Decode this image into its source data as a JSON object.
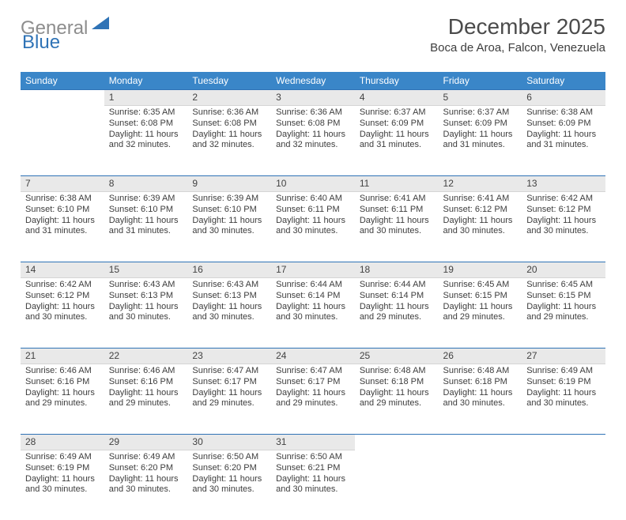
{
  "logo": {
    "part1": "General",
    "part2": "Blue"
  },
  "title": "December 2025",
  "location": "Boca de Aroa, Falcon, Venezuela",
  "styling": {
    "header_bg": "#3a86c8",
    "header_text": "#ffffff",
    "daynum_bg": "#e9e9e9",
    "daynum_border_top": "#2f73b6",
    "body_text": "#3d3d3d",
    "title_color": "#4b4b4b",
    "logo_gray": "#8d8d8d",
    "logo_blue": "#2f73b6",
    "page_bg": "#ffffff",
    "font_family": "Arial",
    "title_fontsize_pt": 21,
    "location_fontsize_pt": 11,
    "header_fontsize_pt": 9,
    "cell_fontsize_pt": 8
  },
  "day_headers": [
    "Sunday",
    "Monday",
    "Tuesday",
    "Wednesday",
    "Thursday",
    "Friday",
    "Saturday"
  ],
  "weeks": [
    [
      null,
      {
        "n": "1",
        "sunrise": "Sunrise: 6:35 AM",
        "sunset": "Sunset: 6:08 PM",
        "day1": "Daylight: 11 hours",
        "day2": "and 32 minutes."
      },
      {
        "n": "2",
        "sunrise": "Sunrise: 6:36 AM",
        "sunset": "Sunset: 6:08 PM",
        "day1": "Daylight: 11 hours",
        "day2": "and 32 minutes."
      },
      {
        "n": "3",
        "sunrise": "Sunrise: 6:36 AM",
        "sunset": "Sunset: 6:08 PM",
        "day1": "Daylight: 11 hours",
        "day2": "and 32 minutes."
      },
      {
        "n": "4",
        "sunrise": "Sunrise: 6:37 AM",
        "sunset": "Sunset: 6:09 PM",
        "day1": "Daylight: 11 hours",
        "day2": "and 31 minutes."
      },
      {
        "n": "5",
        "sunrise": "Sunrise: 6:37 AM",
        "sunset": "Sunset: 6:09 PM",
        "day1": "Daylight: 11 hours",
        "day2": "and 31 minutes."
      },
      {
        "n": "6",
        "sunrise": "Sunrise: 6:38 AM",
        "sunset": "Sunset: 6:09 PM",
        "day1": "Daylight: 11 hours",
        "day2": "and 31 minutes."
      }
    ],
    [
      {
        "n": "7",
        "sunrise": "Sunrise: 6:38 AM",
        "sunset": "Sunset: 6:10 PM",
        "day1": "Daylight: 11 hours",
        "day2": "and 31 minutes."
      },
      {
        "n": "8",
        "sunrise": "Sunrise: 6:39 AM",
        "sunset": "Sunset: 6:10 PM",
        "day1": "Daylight: 11 hours",
        "day2": "and 31 minutes."
      },
      {
        "n": "9",
        "sunrise": "Sunrise: 6:39 AM",
        "sunset": "Sunset: 6:10 PM",
        "day1": "Daylight: 11 hours",
        "day2": "and 30 minutes."
      },
      {
        "n": "10",
        "sunrise": "Sunrise: 6:40 AM",
        "sunset": "Sunset: 6:11 PM",
        "day1": "Daylight: 11 hours",
        "day2": "and 30 minutes."
      },
      {
        "n": "11",
        "sunrise": "Sunrise: 6:41 AM",
        "sunset": "Sunset: 6:11 PM",
        "day1": "Daylight: 11 hours",
        "day2": "and 30 minutes."
      },
      {
        "n": "12",
        "sunrise": "Sunrise: 6:41 AM",
        "sunset": "Sunset: 6:12 PM",
        "day1": "Daylight: 11 hours",
        "day2": "and 30 minutes."
      },
      {
        "n": "13",
        "sunrise": "Sunrise: 6:42 AM",
        "sunset": "Sunset: 6:12 PM",
        "day1": "Daylight: 11 hours",
        "day2": "and 30 minutes."
      }
    ],
    [
      {
        "n": "14",
        "sunrise": "Sunrise: 6:42 AM",
        "sunset": "Sunset: 6:12 PM",
        "day1": "Daylight: 11 hours",
        "day2": "and 30 minutes."
      },
      {
        "n": "15",
        "sunrise": "Sunrise: 6:43 AM",
        "sunset": "Sunset: 6:13 PM",
        "day1": "Daylight: 11 hours",
        "day2": "and 30 minutes."
      },
      {
        "n": "16",
        "sunrise": "Sunrise: 6:43 AM",
        "sunset": "Sunset: 6:13 PM",
        "day1": "Daylight: 11 hours",
        "day2": "and 30 minutes."
      },
      {
        "n": "17",
        "sunrise": "Sunrise: 6:44 AM",
        "sunset": "Sunset: 6:14 PM",
        "day1": "Daylight: 11 hours",
        "day2": "and 30 minutes."
      },
      {
        "n": "18",
        "sunrise": "Sunrise: 6:44 AM",
        "sunset": "Sunset: 6:14 PM",
        "day1": "Daylight: 11 hours",
        "day2": "and 29 minutes."
      },
      {
        "n": "19",
        "sunrise": "Sunrise: 6:45 AM",
        "sunset": "Sunset: 6:15 PM",
        "day1": "Daylight: 11 hours",
        "day2": "and 29 minutes."
      },
      {
        "n": "20",
        "sunrise": "Sunrise: 6:45 AM",
        "sunset": "Sunset: 6:15 PM",
        "day1": "Daylight: 11 hours",
        "day2": "and 29 minutes."
      }
    ],
    [
      {
        "n": "21",
        "sunrise": "Sunrise: 6:46 AM",
        "sunset": "Sunset: 6:16 PM",
        "day1": "Daylight: 11 hours",
        "day2": "and 29 minutes."
      },
      {
        "n": "22",
        "sunrise": "Sunrise: 6:46 AM",
        "sunset": "Sunset: 6:16 PM",
        "day1": "Daylight: 11 hours",
        "day2": "and 29 minutes."
      },
      {
        "n": "23",
        "sunrise": "Sunrise: 6:47 AM",
        "sunset": "Sunset: 6:17 PM",
        "day1": "Daylight: 11 hours",
        "day2": "and 29 minutes."
      },
      {
        "n": "24",
        "sunrise": "Sunrise: 6:47 AM",
        "sunset": "Sunset: 6:17 PM",
        "day1": "Daylight: 11 hours",
        "day2": "and 29 minutes."
      },
      {
        "n": "25",
        "sunrise": "Sunrise: 6:48 AM",
        "sunset": "Sunset: 6:18 PM",
        "day1": "Daylight: 11 hours",
        "day2": "and 29 minutes."
      },
      {
        "n": "26",
        "sunrise": "Sunrise: 6:48 AM",
        "sunset": "Sunset: 6:18 PM",
        "day1": "Daylight: 11 hours",
        "day2": "and 30 minutes."
      },
      {
        "n": "27",
        "sunrise": "Sunrise: 6:49 AM",
        "sunset": "Sunset: 6:19 PM",
        "day1": "Daylight: 11 hours",
        "day2": "and 30 minutes."
      }
    ],
    [
      {
        "n": "28",
        "sunrise": "Sunrise: 6:49 AM",
        "sunset": "Sunset: 6:19 PM",
        "day1": "Daylight: 11 hours",
        "day2": "and 30 minutes."
      },
      {
        "n": "29",
        "sunrise": "Sunrise: 6:49 AM",
        "sunset": "Sunset: 6:20 PM",
        "day1": "Daylight: 11 hours",
        "day2": "and 30 minutes."
      },
      {
        "n": "30",
        "sunrise": "Sunrise: 6:50 AM",
        "sunset": "Sunset: 6:20 PM",
        "day1": "Daylight: 11 hours",
        "day2": "and 30 minutes."
      },
      {
        "n": "31",
        "sunrise": "Sunrise: 6:50 AM",
        "sunset": "Sunset: 6:21 PM",
        "day1": "Daylight: 11 hours",
        "day2": "and 30 minutes."
      },
      null,
      null,
      null
    ]
  ]
}
